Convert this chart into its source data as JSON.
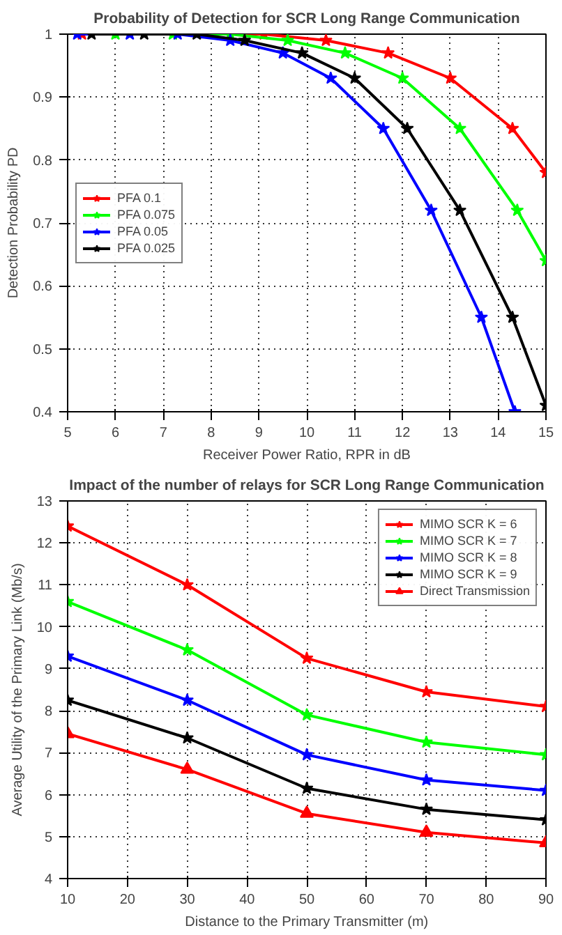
{
  "chart_data": [
    {
      "type": "line",
      "title": "Probability of Detection for SCR Long Range Communication",
      "xlabel": "Receiver Power Ratio, RPR in dB",
      "ylabel": "Detection Probability PD",
      "xlim": [
        5,
        15
      ],
      "ylim": [
        0.4,
        1
      ],
      "xticks": [
        5,
        6,
        7,
        8,
        9,
        10,
        11,
        12,
        13,
        14,
        15
      ],
      "yticks": [
        0.4,
        0.5,
        0.6,
        0.7,
        0.8,
        0.9,
        1
      ],
      "grid": true,
      "legend": "left",
      "marker": "star",
      "line_style": "solid",
      "series": [
        {
          "name": "PFA 0.1",
          "color": "#ff0000",
          "x": [
            5.3,
            9.1,
            10.4,
            11.7,
            13.0,
            14.3,
            15
          ],
          "values": [
            1,
            1,
            0.99,
            0.97,
            0.93,
            0.85,
            0.78
          ]
        },
        {
          "name": "PFA 0.075",
          "color": "#00ff00",
          "x": [
            6.0,
            7.2,
            8.4,
            9.6,
            10.8,
            12.0,
            13.2,
            14.4,
            15
          ],
          "values": [
            1,
            1,
            1,
            0.99,
            0.97,
            0.93,
            0.85,
            0.72,
            0.64
          ]
        },
        {
          "name": "PFA 0.05",
          "color": "#0000ff",
          "x": [
            5.2,
            6.3,
            7.3,
            8.4,
            9.5,
            10.5,
            11.6,
            12.6,
            13.65,
            14.35
          ],
          "values": [
            1,
            1,
            1,
            0.99,
            0.97,
            0.93,
            0.85,
            0.72,
            0.55,
            0.4
          ]
        },
        {
          "name": "PFA 0.025",
          "color": "#000000",
          "x": [
            5.5,
            6.6,
            7.7,
            8.7,
            9.9,
            11.0,
            12.1,
            13.2,
            14.3,
            15
          ],
          "values": [
            1,
            1,
            1,
            0.99,
            0.97,
            0.93,
            0.85,
            0.72,
            0.55,
            0.41
          ]
        }
      ]
    },
    {
      "type": "line",
      "title": "Impact of the number of relays for SCR Long Range Communication",
      "xlabel": "Distance to the Primary Transmitter (m)",
      "ylabel": "Average Utility of the Primary Link (Mb/s)",
      "x": [
        10,
        30,
        50,
        70,
        90
      ],
      "xlim": [
        10,
        90
      ],
      "ylim": [
        4,
        13
      ],
      "xticks": [
        10,
        20,
        30,
        40,
        50,
        60,
        70,
        80,
        90
      ],
      "yticks": [
        4,
        5,
        6,
        7,
        8,
        9,
        10,
        11,
        12,
        13
      ],
      "grid": true,
      "legend": "top right",
      "marker": "star",
      "line_style": "solid",
      "series": [
        {
          "name": "MIMO SCR K = 6",
          "color": "#ff0000",
          "values": [
            12.4,
            11.0,
            9.25,
            8.45,
            8.1
          ]
        },
        {
          "name": "MIMO SCR K = 7",
          "color": "#00ff00",
          "values": [
            10.6,
            9.45,
            7.9,
            7.25,
            6.95
          ]
        },
        {
          "name": "MIMO SCR K = 8",
          "color": "#0000ff",
          "values": [
            9.3,
            8.25,
            6.95,
            6.35,
            6.1
          ]
        },
        {
          "name": "MIMO SCR K = 9",
          "color": "#000000",
          "values": [
            8.25,
            7.35,
            6.15,
            5.65,
            5.4
          ]
        },
        {
          "name": "Direct Transmission",
          "color": "#ff0000",
          "marker": "triangle",
          "values": [
            7.45,
            6.6,
            5.55,
            5.1,
            4.85
          ]
        }
      ]
    }
  ]
}
